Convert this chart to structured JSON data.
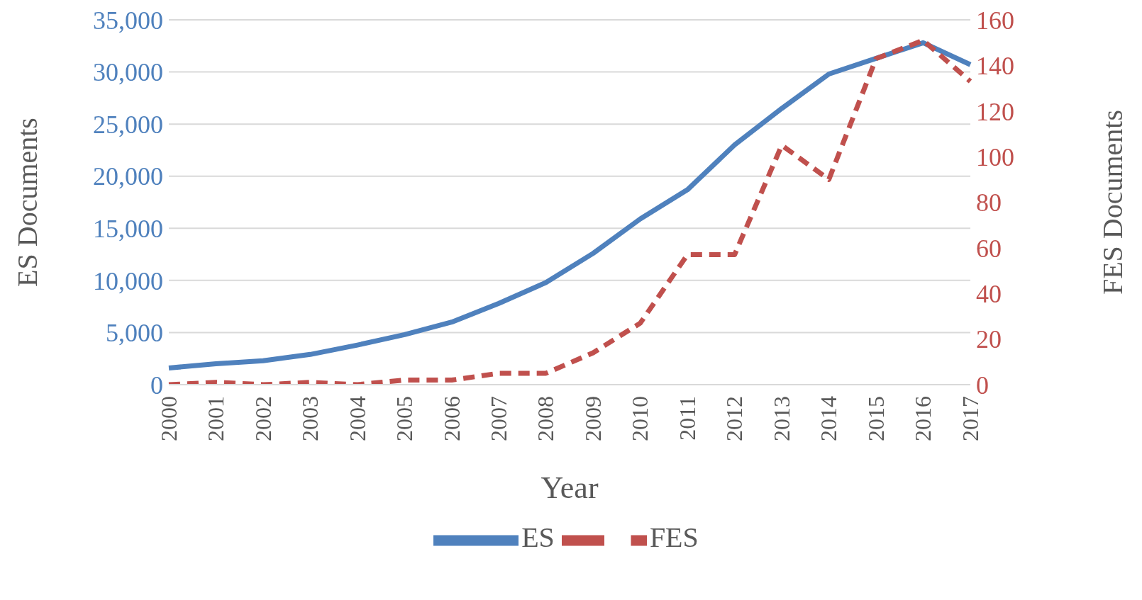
{
  "chart_data": {
    "type": "line",
    "xlabel": "Year",
    "ylabel": "ES Documents",
    "y2label": "FES Documents",
    "categories": [
      "2000",
      "2001",
      "2002",
      "2003",
      "2004",
      "2005",
      "2006",
      "2007",
      "2008",
      "2009",
      "2010",
      "2011",
      "2012",
      "2013",
      "2014",
      "2015",
      "2016",
      "2017"
    ],
    "series": [
      {
        "name": "ES",
        "color": "#4f81bd",
        "line_style": "solid",
        "values": [
          1600,
          2000,
          2300,
          2900,
          3800,
          4800,
          6000,
          7800,
          9800,
          12600,
          15900,
          18700,
          23000,
          26500,
          29800,
          31300,
          32800,
          30700
        ]
      },
      {
        "name": "FES",
        "color": "#c0504d",
        "line_style": "dashed",
        "axis": "y2",
        "values": [
          0,
          1,
          0,
          1,
          0,
          2,
          2,
          5,
          5,
          14,
          27,
          57,
          57,
          105,
          90,
          143,
          151,
          133
        ]
      }
    ],
    "ylim": [
      0,
      35000
    ],
    "yticks": [
      {
        "value": 0,
        "label": "0"
      },
      {
        "value": 5000,
        "label": "5,000"
      },
      {
        "value": 10000,
        "label": "10,000"
      },
      {
        "value": 15000,
        "label": "15,000"
      },
      {
        "value": 20000,
        "label": "20,000"
      },
      {
        "value": 25000,
        "label": "25,000"
      },
      {
        "value": 30000,
        "label": "30,000"
      },
      {
        "value": 35000,
        "label": "35,000"
      }
    ],
    "y2lim": [
      0,
      160
    ],
    "y2ticks": [
      0,
      20,
      40,
      60,
      80,
      100,
      120,
      140,
      160
    ],
    "grid": "y",
    "legend": "bottom",
    "marker": "none"
  }
}
